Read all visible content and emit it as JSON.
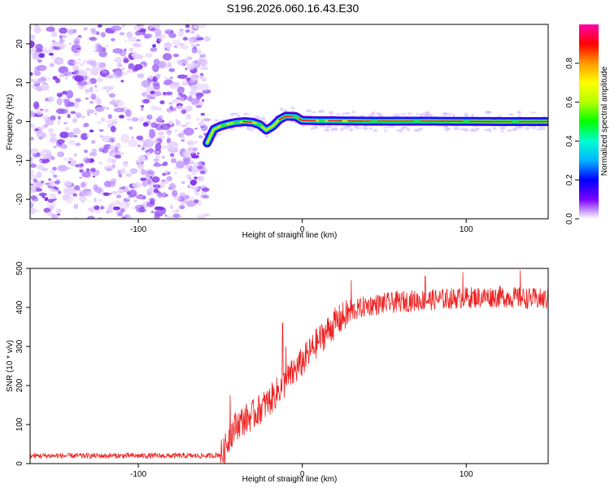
{
  "title": "S196.2026.060.16.43.E30",
  "chart_data": [
    {
      "type": "heatmap",
      "name": "spectrogram",
      "xlabel": "Height of straight line (km)",
      "ylabel": "Frequency (Hz)",
      "xlim": [
        -166,
        150
      ],
      "ylim": [
        -25,
        25
      ],
      "x_ticks": [
        -100,
        0,
        100
      ],
      "y_ticks": [
        -20,
        -10,
        0,
        10,
        20
      ],
      "x_tick_labels": [
        "-100",
        "0",
        "100"
      ],
      "y_tick_labels": [
        "-20",
        "-10",
        "0",
        "10",
        "20"
      ],
      "noise_region_x": [
        -166,
        -58
      ],
      "signal_ridge": [
        {
          "x": -58,
          "y": -5.5
        },
        {
          "x": -54,
          "y": -2.0
        },
        {
          "x": -50,
          "y": -1.2
        },
        {
          "x": -45,
          "y": -0.6
        },
        {
          "x": -40,
          "y": -0.2
        },
        {
          "x": -35,
          "y": 0.0
        },
        {
          "x": -30,
          "y": -0.2
        },
        {
          "x": -26,
          "y": -0.8
        },
        {
          "x": -22,
          "y": -2.2
        },
        {
          "x": -18,
          "y": -1.2
        },
        {
          "x": -14,
          "y": 0.5
        },
        {
          "x": -10,
          "y": 1.4
        },
        {
          "x": -4,
          "y": 1.3
        },
        {
          "x": 0,
          "y": 0.3
        },
        {
          "x": 10,
          "y": 0.2
        },
        {
          "x": 20,
          "y": 0.2
        },
        {
          "x": 40,
          "y": 0.1
        },
        {
          "x": 80,
          "y": 0.1
        },
        {
          "x": 120,
          "y": 0.0
        },
        {
          "x": 150,
          "y": 0.0
        }
      ],
      "colorbar": {
        "label": "Normalized spectral amplitude",
        "range": [
          0,
          1
        ],
        "ticks": [
          0.0,
          0.2,
          0.4,
          0.6,
          0.8
        ],
        "tick_labels": [
          "0.0",
          "0.2",
          "0.4",
          "0.6",
          "0.8"
        ],
        "colormap": [
          "#ffffff",
          "#7a00ff",
          "#0000ff",
          "#00b4ff",
          "#00ffd0",
          "#00ff00",
          "#b4ff00",
          "#ffff00",
          "#ff9900",
          "#ff0000",
          "#ff00aa"
        ]
      },
      "noise_colors": [
        "#e6d2ff",
        "#d0b0ff",
        "#b684ff",
        "#9a5cf5",
        "#7f2fe8"
      ]
    },
    {
      "type": "line",
      "name": "snr",
      "xlabel": "Height of straight line (km)",
      "ylabel": "SNR (10 * v/v)",
      "xlim": [
        -166,
        150
      ],
      "ylim": [
        0,
        500
      ],
      "x_ticks": [
        -100,
        0,
        100
      ],
      "y_ticks": [
        0,
        100,
        200,
        300,
        400,
        500
      ],
      "x_tick_labels": [
        "-100",
        "0",
        "100"
      ],
      "y_tick_labels": [
        "0",
        "100",
        "200",
        "300",
        "400",
        "500"
      ],
      "color": "#ee2222",
      "trend": [
        {
          "x": -166,
          "y": 20
        },
        {
          "x": -100,
          "y": 20
        },
        {
          "x": -55,
          "y": 20
        },
        {
          "x": -48,
          "y": 25
        },
        {
          "x": -44,
          "y": 75
        },
        {
          "x": -40,
          "y": 100
        },
        {
          "x": -30,
          "y": 125
        },
        {
          "x": -20,
          "y": 160
        },
        {
          "x": -10,
          "y": 210
        },
        {
          "x": 0,
          "y": 260
        },
        {
          "x": 10,
          "y": 315
        },
        {
          "x": 20,
          "y": 360
        },
        {
          "x": 30,
          "y": 390
        },
        {
          "x": 40,
          "y": 405
        },
        {
          "x": 60,
          "y": 415
        },
        {
          "x": 80,
          "y": 420
        },
        {
          "x": 100,
          "y": 425
        },
        {
          "x": 120,
          "y": 428
        },
        {
          "x": 150,
          "y": 420
        }
      ],
      "spikes": [
        {
          "x": -44,
          "y": 175
        },
        {
          "x": -12,
          "y": 360
        },
        {
          "x": -10,
          "y": 300
        },
        {
          "x": 30,
          "y": 470
        },
        {
          "x": 75,
          "y": 480
        },
        {
          "x": 98,
          "y": 490
        },
        {
          "x": 133,
          "y": 495
        }
      ],
      "noise_amplitude": {
        "before_-50": 14,
        "ramp": 80,
        "after_30": 55
      }
    }
  ]
}
